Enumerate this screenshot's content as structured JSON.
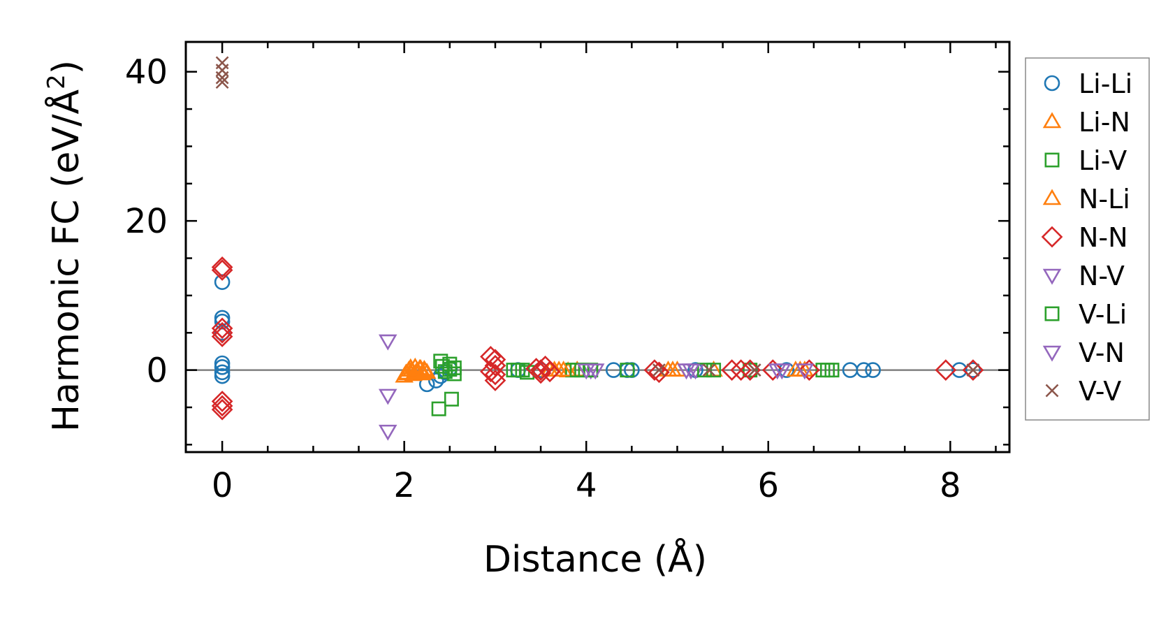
{
  "chart_data": {
    "type": "scatter",
    "title": "",
    "xlabel": "Distance (Å)",
    "ylabel_main": "Harmonic FC (eV/Å",
    "ylabel_sup": "2",
    "ylabel_close": ")",
    "xlim": [
      -0.4,
      8.65
    ],
    "ylim": [
      -11,
      44
    ],
    "xticks": [
      0,
      2,
      4,
      6,
      8
    ],
    "xtick_labels": [
      "0",
      "2",
      "4",
      "6",
      "8"
    ],
    "yticks": [
      0,
      20,
      40
    ],
    "ytick_labels": [
      "0",
      "20",
      "40"
    ],
    "grid": false,
    "zero_line": true,
    "legend_position": "outside-right",
    "series": [
      {
        "name": "Li-Li",
        "marker": "circle",
        "color": "#1f77b4",
        "points": [
          [
            0,
            11.8
          ],
          [
            0,
            7.0
          ],
          [
            0,
            6.5
          ],
          [
            0,
            5.0
          ],
          [
            0,
            0.9
          ],
          [
            0,
            0.4
          ],
          [
            0,
            -0.3
          ],
          [
            0,
            -0.8
          ],
          [
            2.25,
            -1.9
          ],
          [
            2.35,
            -1.4
          ],
          [
            2.4,
            -0.8
          ],
          [
            2.45,
            -0.3
          ],
          [
            2.5,
            0.2
          ],
          [
            3.25,
            0.0
          ],
          [
            3.5,
            0.0
          ],
          [
            4.3,
            0.0
          ],
          [
            4.45,
            0.0
          ],
          [
            4.5,
            0.0
          ],
          [
            5.2,
            0.0
          ],
          [
            5.8,
            0.0
          ],
          [
            6.2,
            0.0
          ],
          [
            6.9,
            0.0
          ],
          [
            7.05,
            0.0
          ],
          [
            7.15,
            0.0
          ],
          [
            8.1,
            0.0
          ],
          [
            8.25,
            0.0
          ]
        ]
      },
      {
        "name": "Li-N",
        "marker": "triangle-up",
        "color": "#ff7f0e",
        "points": [
          [
            2.0,
            -0.8
          ],
          [
            2.02,
            -0.4
          ],
          [
            2.05,
            0.0
          ],
          [
            2.07,
            0.3
          ],
          [
            2.1,
            -0.6
          ],
          [
            2.12,
            0.4
          ],
          [
            2.15,
            -0.2
          ],
          [
            2.17,
            0.2
          ],
          [
            2.2,
            -0.5
          ],
          [
            2.22,
            0.1
          ],
          [
            2.25,
            -0.3
          ],
          [
            3.6,
            0.0
          ],
          [
            3.7,
            0.0
          ],
          [
            3.8,
            -0.1
          ],
          [
            3.9,
            0.0
          ],
          [
            4.9,
            0.0
          ],
          [
            5.0,
            0.0
          ],
          [
            5.4,
            0.0
          ],
          [
            6.3,
            0.0
          ],
          [
            6.4,
            0.0
          ]
        ]
      },
      {
        "name": "Li-V",
        "marker": "square",
        "color": "#2ca02c",
        "points": [
          [
            2.4,
            1.2
          ],
          [
            2.45,
            -0.2
          ],
          [
            2.5,
            0.8
          ],
          [
            2.55,
            -0.5
          ],
          [
            2.55,
            0.3
          ],
          [
            2.38,
            -5.2
          ],
          [
            2.52,
            -3.9
          ],
          [
            3.2,
            0.0
          ],
          [
            3.3,
            0.0
          ],
          [
            3.35,
            -0.3
          ],
          [
            3.85,
            0.0
          ],
          [
            3.95,
            0.0
          ],
          [
            4.45,
            0.0
          ],
          [
            5.4,
            0.0
          ],
          [
            5.8,
            0.0
          ],
          [
            6.6,
            0.0
          ],
          [
            6.7,
            0.0
          ]
        ]
      },
      {
        "name": "N-Li",
        "marker": "triangle-up",
        "color": "#ff7f0e",
        "points": [
          [
            2.03,
            -0.5
          ],
          [
            2.08,
            0.0
          ],
          [
            2.13,
            -0.3
          ],
          [
            2.18,
            0.2
          ],
          [
            2.23,
            -0.1
          ],
          [
            3.65,
            0.0
          ],
          [
            3.75,
            0.0
          ],
          [
            4.95,
            0.0
          ],
          [
            6.35,
            0.0
          ]
        ]
      },
      {
        "name": "N-N",
        "marker": "diamond",
        "color": "#d62728",
        "points": [
          [
            0,
            13.8
          ],
          [
            0,
            13.4
          ],
          [
            0,
            5.6
          ],
          [
            0,
            5.0
          ],
          [
            0,
            4.5
          ],
          [
            0,
            -4.2
          ],
          [
            0,
            -4.8
          ],
          [
            0,
            -5.3
          ],
          [
            2.95,
            1.8
          ],
          [
            3.0,
            1.4
          ],
          [
            3.0,
            0.6
          ],
          [
            3.0,
            -0.6
          ],
          [
            3.0,
            -1.4
          ],
          [
            2.95,
            -0.2
          ],
          [
            3.45,
            0.2
          ],
          [
            3.5,
            -0.4
          ],
          [
            3.55,
            0.5
          ],
          [
            3.6,
            -0.2
          ],
          [
            3.5,
            0.0
          ],
          [
            4.75,
            0.0
          ],
          [
            4.8,
            -0.3
          ],
          [
            5.6,
            0.0
          ],
          [
            5.7,
            0.0
          ],
          [
            5.8,
            0.0
          ],
          [
            6.05,
            0.0
          ],
          [
            6.45,
            0.0
          ],
          [
            7.95,
            0.0
          ],
          [
            8.25,
            0.0
          ]
        ]
      },
      {
        "name": "N-V",
        "marker": "triangle-down",
        "color": "#9467bd",
        "points": [
          [
            1.82,
            3.9
          ],
          [
            1.82,
            -3.4
          ],
          [
            1.82,
            -8.2
          ],
          [
            4.05,
            0.0
          ],
          [
            5.1,
            0.0
          ],
          [
            5.2,
            0.0
          ],
          [
            6.1,
            0.0
          ],
          [
            6.4,
            0.0
          ]
        ]
      },
      {
        "name": "V-Li",
        "marker": "square",
        "color": "#2ca02c",
        "points": [
          [
            2.42,
            0.5
          ],
          [
            2.5,
            0.1
          ],
          [
            3.25,
            0.0
          ],
          [
            3.9,
            0.0
          ],
          [
            4.05,
            0.0
          ],
          [
            5.3,
            0.0
          ],
          [
            6.65,
            0.0
          ]
        ]
      },
      {
        "name": "V-N",
        "marker": "triangle-down",
        "color": "#9467bd",
        "points": [
          [
            4.0,
            0.0
          ],
          [
            4.1,
            0.0
          ],
          [
            5.15,
            0.0
          ],
          [
            6.15,
            0.0
          ]
        ]
      },
      {
        "name": "V-V",
        "marker": "x",
        "color": "#8c564b",
        "points": [
          [
            0,
            41.2
          ],
          [
            0,
            40.2
          ],
          [
            0,
            39.2
          ],
          [
            0,
            38.6
          ],
          [
            4.8,
            0.0
          ],
          [
            5.35,
            0.0
          ],
          [
            5.85,
            0.0
          ],
          [
            8.25,
            0.0
          ]
        ]
      }
    ]
  }
}
